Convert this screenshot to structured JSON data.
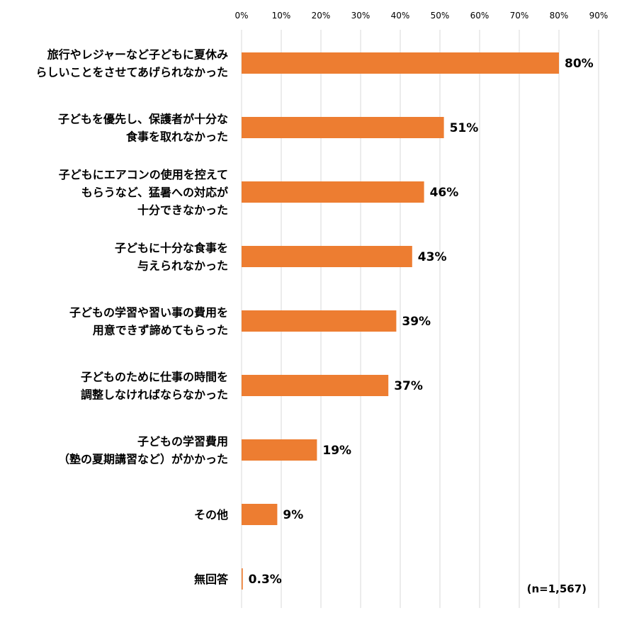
{
  "chart_data": {
    "type": "bar",
    "orientation": "horizontal",
    "categories": [
      [
        "旅行やレジャーなど子どもに夏休み",
        "らしいことをさせてあげられなかった"
      ],
      [
        "子どもを優先し、保護者が十分な",
        "食事を取れなかった"
      ],
      [
        "子どもにエアコンの使用を控えて",
        "もらうなど、猛暑への対応が",
        "十分できなかった"
      ],
      [
        "子どもに十分な食事を",
        "与えられなかった"
      ],
      [
        "子どもの学習や習い事の費用を",
        "用意できず諦めてもらった"
      ],
      [
        "子どものために仕事の時間を",
        "調整しなければならなかった"
      ],
      [
        "子どもの学習費用",
        "（塾の夏期講習など）がかかった"
      ],
      [
        "その他"
      ],
      [
        "無回答"
      ]
    ],
    "values": [
      80,
      51,
      46,
      43,
      39,
      37,
      19,
      9,
      0.3
    ],
    "value_labels": [
      "80%",
      "51%",
      "46%",
      "43%",
      "39%",
      "37%",
      "19%",
      "9%",
      "0.3%"
    ],
    "xlim": [
      0,
      90
    ],
    "x_ticks": [
      0,
      10,
      20,
      30,
      40,
      50,
      60,
      70,
      80,
      90
    ],
    "x_tick_labels": [
      "0%",
      "10%",
      "20%",
      "30%",
      "40%",
      "50%",
      "60%",
      "70%",
      "80%",
      "90%"
    ],
    "axis_position": "top",
    "grid": true,
    "bar_color": "#ED7D31",
    "grid_color": "#d9d9d9",
    "note": "(n=1,567)"
  }
}
